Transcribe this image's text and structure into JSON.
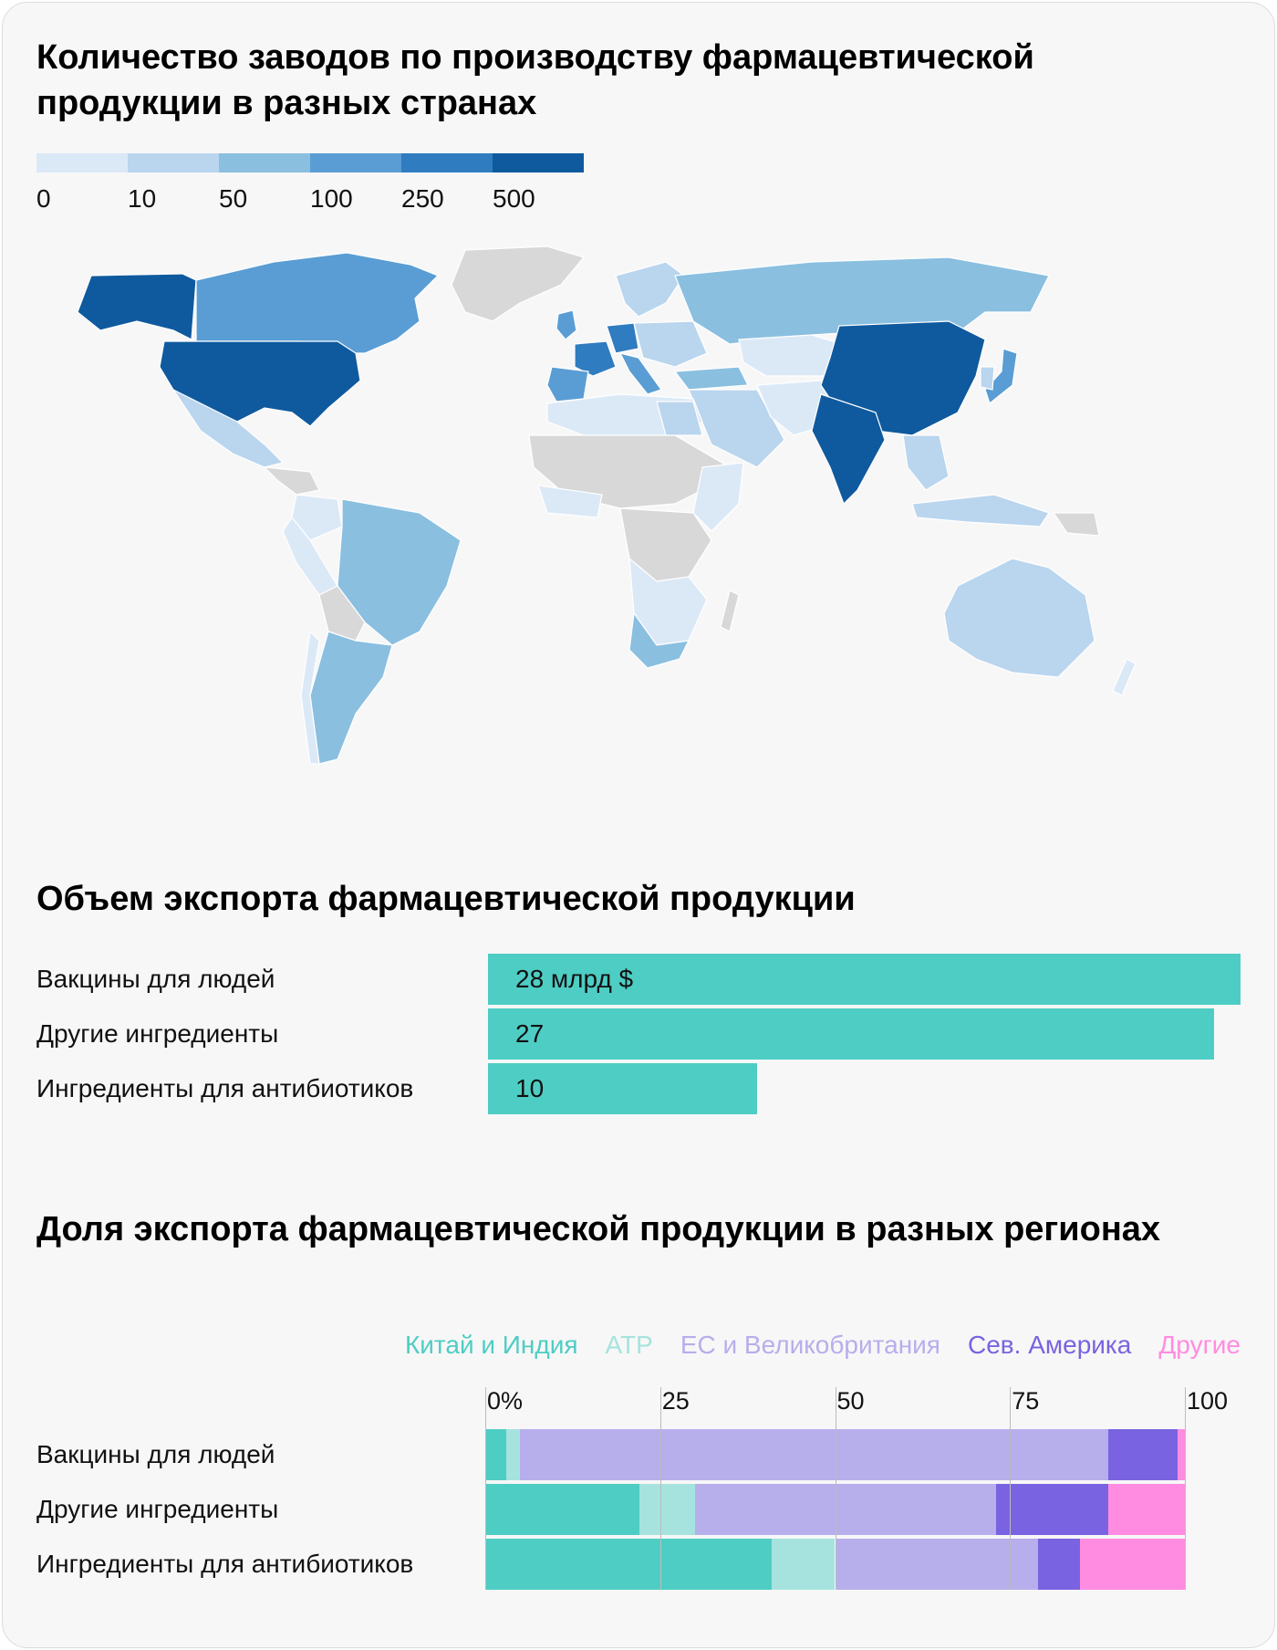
{
  "map_section": {
    "title": "Количество заводов по производству фармацевтической продукции в разных странах",
    "scale": {
      "ticks": [
        "0",
        "10",
        "50",
        "100",
        "250",
        "500"
      ],
      "colors": [
        "#dbe9f7",
        "#bad5ee",
        "#8abfe0",
        "#5a9dd4",
        "#2f7cc0",
        "#0f5a9e"
      ]
    },
    "land_no_data_color": "#d8d8d8"
  },
  "chart_data": [
    {
      "type": "bar",
      "title": "Объем экспорта фармацевтической продукции",
      "categories": [
        "Вакцины для людей",
        "Другие ингредиенты",
        "Ингредиенты для антибиотиков"
      ],
      "values": [
        28,
        27,
        10
      ],
      "value_labels": [
        "28 млрд $",
        "27",
        "10"
      ],
      "xlim": [
        0,
        28
      ],
      "color": "#4ecdc4"
    },
    {
      "type": "bar",
      "stacked": "percent",
      "title": "Доля экспорта фармацевтической продукции в разных регионах",
      "categories": [
        "Вакцины для людей",
        "Другие ингредиенты",
        "Ингредиенты для антибиотиков"
      ],
      "series": [
        {
          "name": "Китай и Индия",
          "color": "#4ecdc4",
          "values": [
            3,
            22,
            41
          ]
        },
        {
          "name": "АТР",
          "color": "#a6e3de",
          "values": [
            2,
            8,
            9
          ]
        },
        {
          "name": "ЕС и Великобритания",
          "color": "#b7aeec",
          "values": [
            84,
            43,
            29
          ]
        },
        {
          "name": "Сев. Америка",
          "color": "#7a63e0",
          "values": [
            10,
            16,
            6
          ]
        },
        {
          "name": "Другие",
          "color": "#ff8ce0",
          "values": [
            1,
            11,
            15
          ]
        }
      ],
      "xticks": [
        "0%",
        "25",
        "50",
        "75",
        "100"
      ],
      "xlim": [
        0,
        100
      ],
      "legend_position": "top-right"
    }
  ]
}
